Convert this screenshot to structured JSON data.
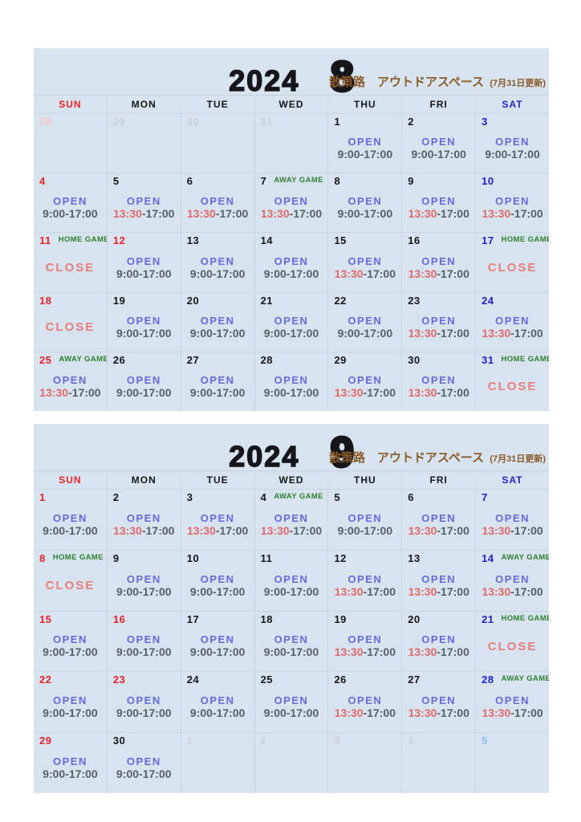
{
  "labels": {
    "open": "OPEN",
    "close": "CLOSE"
  },
  "colors": {
    "page_bg": "#ffffff",
    "calendar_bg": "#d7e4f0",
    "grid_line": "#c6d6e4",
    "open_text": "#666bdc",
    "time_text": "#575f66",
    "late_start_red": "#e2696b",
    "close_text": "#ec7b7b",
    "game_green": "#2e8030",
    "subtitle_brown": "#8a5a28",
    "sunday_red": "#e8232a",
    "saturday_blue": "#2323cd",
    "weekday_black": "#16161a",
    "outmonth_gray": "#ccd1d9",
    "outmonth_sun_pink": "#f4c8c8",
    "outmonth_sat_blue": "#8cc0ec"
  },
  "weekday_headers": [
    {
      "label": "SUN",
      "tone": "sun"
    },
    {
      "label": "MON",
      "tone": "wd"
    },
    {
      "label": "TUE",
      "tone": "wd"
    },
    {
      "label": "WED",
      "tone": "wd"
    },
    {
      "label": "THU",
      "tone": "wd"
    },
    {
      "label": "FRI",
      "tone": "wd"
    },
    {
      "label": "SAT",
      "tone": "sat"
    }
  ],
  "calendars": [
    {
      "year": "2024",
      "month": "8",
      "facility": "散策路　アウトドアスペース",
      "update_note": "(7月31日更新)",
      "weeks": [
        [
          {
            "date": "28",
            "tone": "prevsun",
            "game": "",
            "status": "none"
          },
          {
            "date": "29",
            "tone": "prev",
            "game": "",
            "status": "none"
          },
          {
            "date": "30",
            "tone": "prev",
            "game": "",
            "status": "none"
          },
          {
            "date": "31",
            "tone": "prev",
            "game": "",
            "status": "none"
          },
          {
            "date": "1",
            "tone": "wd",
            "game": "",
            "status": "open",
            "start": "9:00",
            "rest": "-17:00",
            "red": false
          },
          {
            "date": "2",
            "tone": "wd",
            "game": "",
            "status": "open",
            "start": "9:00",
            "rest": "-17:00",
            "red": false
          },
          {
            "date": "3",
            "tone": "sat",
            "game": "",
            "status": "open",
            "start": "9:00",
            "rest": "-17:00",
            "red": false
          }
        ],
        [
          {
            "date": "4",
            "tone": "sun",
            "game": "",
            "status": "open",
            "start": "9:00",
            "rest": "-17:00",
            "red": false
          },
          {
            "date": "5",
            "tone": "wd",
            "game": "",
            "status": "open",
            "start": "13:30",
            "rest": "-17:00",
            "red": true
          },
          {
            "date": "6",
            "tone": "wd",
            "game": "",
            "status": "open",
            "start": "13:30",
            "rest": "-17:00",
            "red": true
          },
          {
            "date": "7",
            "tone": "wd",
            "game": "AWAY GAME",
            "status": "open",
            "start": "13:30",
            "rest": "-17:00",
            "red": true
          },
          {
            "date": "8",
            "tone": "wd",
            "game": "",
            "status": "open",
            "start": "9:00",
            "rest": "-17:00",
            "red": false
          },
          {
            "date": "9",
            "tone": "wd",
            "game": "",
            "status": "open",
            "start": "13:30",
            "rest": "-17:00",
            "red": true
          },
          {
            "date": "10",
            "tone": "sat",
            "game": "",
            "status": "open",
            "start": "13:30",
            "rest": "-17:00",
            "red": true
          }
        ],
        [
          {
            "date": "11",
            "tone": "sun",
            "game": "HOME GAME",
            "status": "close"
          },
          {
            "date": "12",
            "tone": "sun",
            "game": "",
            "status": "open",
            "start": "9:00",
            "rest": "-17:00",
            "red": false
          },
          {
            "date": "13",
            "tone": "wd",
            "game": "",
            "status": "open",
            "start": "9:00",
            "rest": "-17:00",
            "red": false
          },
          {
            "date": "14",
            "tone": "wd",
            "game": "",
            "status": "open",
            "start": "9:00",
            "rest": "-17:00",
            "red": false
          },
          {
            "date": "15",
            "tone": "wd",
            "game": "",
            "status": "open",
            "start": "13:30",
            "rest": "-17:00",
            "red": true
          },
          {
            "date": "16",
            "tone": "wd",
            "game": "",
            "status": "open",
            "start": "13:30",
            "rest": "-17:00",
            "red": true
          },
          {
            "date": "17",
            "tone": "sat",
            "game": "HOME GAME",
            "status": "close"
          }
        ],
        [
          {
            "date": "18",
            "tone": "sun",
            "game": "",
            "status": "close"
          },
          {
            "date": "19",
            "tone": "wd",
            "game": "",
            "status": "open",
            "start": "9:00",
            "rest": "-17:00",
            "red": false
          },
          {
            "date": "20",
            "tone": "wd",
            "game": "",
            "status": "open",
            "start": "9:00",
            "rest": "-17:00",
            "red": false
          },
          {
            "date": "21",
            "tone": "wd",
            "game": "",
            "status": "open",
            "start": "9:00",
            "rest": "-17:00",
            "red": false
          },
          {
            "date": "22",
            "tone": "wd",
            "game": "",
            "status": "open",
            "start": "9:00",
            "rest": "-17:00",
            "red": false
          },
          {
            "date": "23",
            "tone": "wd",
            "game": "",
            "status": "open",
            "start": "13:30",
            "rest": "-17:00",
            "red": true
          },
          {
            "date": "24",
            "tone": "sat",
            "game": "",
            "status": "open",
            "start": "13:30",
            "rest": "-17:00",
            "red": true
          }
        ],
        [
          {
            "date": "25",
            "tone": "sun",
            "game": "AWAY GAME",
            "status": "open",
            "start": "13:30",
            "rest": "-17:00",
            "red": true
          },
          {
            "date": "26",
            "tone": "wd",
            "game": "",
            "status": "open",
            "start": "9:00",
            "rest": "-17:00",
            "red": false
          },
          {
            "date": "27",
            "tone": "wd",
            "game": "",
            "status": "open",
            "start": "9:00",
            "rest": "-17:00",
            "red": false
          },
          {
            "date": "28",
            "tone": "wd",
            "game": "",
            "status": "open",
            "start": "9:00",
            "rest": "-17:00",
            "red": false
          },
          {
            "date": "29",
            "tone": "wd",
            "game": "",
            "status": "open",
            "start": "13:30",
            "rest": "-17:00",
            "red": true
          },
          {
            "date": "30",
            "tone": "wd",
            "game": "",
            "status": "open",
            "start": "13:30",
            "rest": "-17:00",
            "red": true
          },
          {
            "date": "31",
            "tone": "sat",
            "game": "HOME GAME",
            "status": "close"
          }
        ]
      ]
    },
    {
      "year": "2024",
      "month": "9",
      "facility": "散策路　アウトドアスペース",
      "update_note": "(7月31日更新)",
      "weeks": [
        [
          {
            "date": "1",
            "tone": "sun",
            "game": "",
            "status": "open",
            "start": "9:00",
            "rest": "-17:00",
            "red": false
          },
          {
            "date": "2",
            "tone": "wd",
            "game": "",
            "status": "open",
            "start": "13:30",
            "rest": "-17:00",
            "red": true
          },
          {
            "date": "3",
            "tone": "wd",
            "game": "",
            "status": "open",
            "start": "13:30",
            "rest": "-17:00",
            "red": true
          },
          {
            "date": "4",
            "tone": "wd",
            "game": "AWAY GAME",
            "status": "open",
            "start": "13:30",
            "rest": "-17:00",
            "red": true
          },
          {
            "date": "5",
            "tone": "wd",
            "game": "",
            "status": "open",
            "start": "9:00",
            "rest": "-17:00",
            "red": false
          },
          {
            "date": "6",
            "tone": "wd",
            "game": "",
            "status": "open",
            "start": "13:30",
            "rest": "-17:00",
            "red": true
          },
          {
            "date": "7",
            "tone": "sat",
            "game": "",
            "status": "open",
            "start": "13:30",
            "rest": "-17:00",
            "red": true
          }
        ],
        [
          {
            "date": "8",
            "tone": "sun",
            "game": "HOME GAME",
            "status": "close"
          },
          {
            "date": "9",
            "tone": "wd",
            "game": "",
            "status": "open",
            "start": "9:00",
            "rest": "-17:00",
            "red": false
          },
          {
            "date": "10",
            "tone": "wd",
            "game": "",
            "status": "open",
            "start": "9:00",
            "rest": "-17:00",
            "red": false
          },
          {
            "date": "11",
            "tone": "wd",
            "game": "",
            "status": "open",
            "start": "9:00",
            "rest": "-17:00",
            "red": false
          },
          {
            "date": "12",
            "tone": "wd",
            "game": "",
            "status": "open",
            "start": "13:30",
            "rest": "-17:00",
            "red": true
          },
          {
            "date": "13",
            "tone": "wd",
            "game": "",
            "status": "open",
            "start": "13:30",
            "rest": "-17:00",
            "red": true
          },
          {
            "date": "14",
            "tone": "sat",
            "game": "AWAY GAME",
            "status": "open",
            "start": "13:30",
            "rest": "-17:00",
            "red": true
          }
        ],
        [
          {
            "date": "15",
            "tone": "sun",
            "game": "",
            "status": "open",
            "start": "9:00",
            "rest": "-17:00",
            "red": false
          },
          {
            "date": "16",
            "tone": "sun",
            "game": "",
            "status": "open",
            "start": "9:00",
            "rest": "-17:00",
            "red": false
          },
          {
            "date": "17",
            "tone": "wd",
            "game": "",
            "status": "open",
            "start": "9:00",
            "rest": "-17:00",
            "red": false
          },
          {
            "date": "18",
            "tone": "wd",
            "game": "",
            "status": "open",
            "start": "9:00",
            "rest": "-17:00",
            "red": false
          },
          {
            "date": "19",
            "tone": "wd",
            "game": "",
            "status": "open",
            "start": "13:30",
            "rest": "-17:00",
            "red": true
          },
          {
            "date": "20",
            "tone": "wd",
            "game": "",
            "status": "open",
            "start": "13:30",
            "rest": "-17:00",
            "red": true
          },
          {
            "date": "21",
            "tone": "sat",
            "game": "HOME GAME",
            "status": "close"
          }
        ],
        [
          {
            "date": "22",
            "tone": "sun",
            "game": "",
            "status": "open",
            "start": "9:00",
            "rest": "-17:00",
            "red": false
          },
          {
            "date": "23",
            "tone": "sun",
            "game": "",
            "status": "open",
            "start": "9:00",
            "rest": "-17:00",
            "red": false
          },
          {
            "date": "24",
            "tone": "wd",
            "game": "",
            "status": "open",
            "start": "9:00",
            "rest": "-17:00",
            "red": false
          },
          {
            "date": "25",
            "tone": "wd",
            "game": "",
            "status": "open",
            "start": "9:00",
            "rest": "-17:00",
            "red": false
          },
          {
            "date": "26",
            "tone": "wd",
            "game": "",
            "status": "open",
            "start": "13:30",
            "rest": "-17:00",
            "red": true
          },
          {
            "date": "27",
            "tone": "wd",
            "game": "",
            "status": "open",
            "start": "13:30",
            "rest": "-17:00",
            "red": true
          },
          {
            "date": "28",
            "tone": "sat",
            "game": "AWAY GAME",
            "status": "open",
            "start": "13:30",
            "rest": "-17:00",
            "red": true
          }
        ],
        [
          {
            "date": "29",
            "tone": "sun",
            "game": "",
            "status": "open",
            "start": "9:00",
            "rest": "-17:00",
            "red": false
          },
          {
            "date": "30",
            "tone": "wd",
            "game": "",
            "status": "open",
            "start": "9:00",
            "rest": "-17:00",
            "red": false
          },
          {
            "date": "1",
            "tone": "next",
            "game": "",
            "status": "none"
          },
          {
            "date": "2",
            "tone": "next",
            "game": "",
            "status": "none"
          },
          {
            "date": "3",
            "tone": "next",
            "game": "",
            "status": "none"
          },
          {
            "date": "4",
            "tone": "next",
            "game": "",
            "status": "none"
          },
          {
            "date": "5",
            "tone": "nextsat",
            "game": "",
            "status": "none"
          }
        ]
      ]
    }
  ]
}
